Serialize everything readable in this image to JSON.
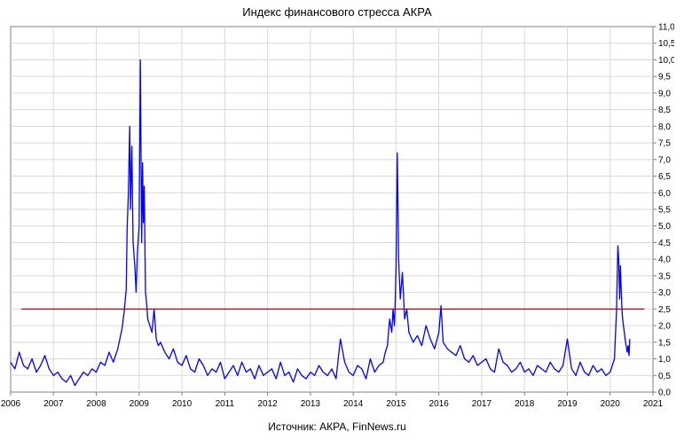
{
  "chart_data": {
    "type": "line",
    "title": "Индекс финансового стресса АКРА",
    "source": "Источник: АКРА, FinNews.ru",
    "xlabel": "",
    "ylabel": "",
    "x_ticks": [
      "2006",
      "2007",
      "2008",
      "2009",
      "2010",
      "2011",
      "2012",
      "2013",
      "2014",
      "2015",
      "2016",
      "2017",
      "2018",
      "2019",
      "2020",
      "2021"
    ],
    "y_ticks": [
      "0,0",
      "0,5",
      "1,0",
      "1,5",
      "2,0",
      "2,5",
      "3,0",
      "3,5",
      "4,0",
      "4,5",
      "5,0",
      "5,5",
      "6,0",
      "6,5",
      "7,0",
      "7,5",
      "8,0",
      "8,5",
      "9,0",
      "9,5",
      "10,0",
      "10,5",
      "11,0"
    ],
    "xlim": [
      2006.0,
      2021.0
    ],
    "ylim": [
      0,
      11
    ],
    "grid": true,
    "series": [
      {
        "color": "#0000ff",
        "x": [
          2006.0,
          2006.1,
          2006.2,
          2006.3,
          2006.4,
          2006.5,
          2006.6,
          2006.7,
          2006.8,
          2006.9,
          2007.0,
          2007.1,
          2007.2,
          2007.3,
          2007.4,
          2007.5,
          2007.6,
          2007.7,
          2007.8,
          2007.9,
          2008.0,
          2008.1,
          2008.2,
          2008.3,
          2008.4,
          2008.5,
          2008.55,
          2008.6,
          2008.65,
          2008.7,
          2008.72,
          2008.75,
          2008.78,
          2008.8,
          2008.83,
          2008.86,
          2008.9,
          2008.93,
          2008.96,
          2009.0,
          2009.03,
          2009.06,
          2009.08,
          2009.1,
          2009.12,
          2009.15,
          2009.18,
          2009.2,
          2009.25,
          2009.3,
          2009.35,
          2009.4,
          2009.45,
          2009.5,
          2009.6,
          2009.7,
          2009.8,
          2009.9,
          2010.0,
          2010.1,
          2010.2,
          2010.3,
          2010.4,
          2010.5,
          2010.6,
          2010.7,
          2010.8,
          2010.9,
          2011.0,
          2011.1,
          2011.2,
          2011.3,
          2011.4,
          2011.5,
          2011.6,
          2011.7,
          2011.8,
          2011.9,
          2012.0,
          2012.1,
          2012.2,
          2012.3,
          2012.4,
          2012.5,
          2012.6,
          2012.7,
          2012.8,
          2012.9,
          2013.0,
          2013.1,
          2013.2,
          2013.3,
          2013.4,
          2013.5,
          2013.6,
          2013.7,
          2013.8,
          2013.9,
          2014.0,
          2014.1,
          2014.2,
          2014.3,
          2014.4,
          2014.5,
          2014.6,
          2014.7,
          2014.75,
          2014.8,
          2014.85,
          2014.9,
          2014.93,
          2014.96,
          2014.98,
          2015.0,
          2015.03,
          2015.06,
          2015.1,
          2015.15,
          2015.2,
          2015.25,
          2015.3,
          2015.4,
          2015.5,
          2015.6,
          2015.7,
          2015.8,
          2015.9,
          2016.0,
          2016.05,
          2016.1,
          2016.2,
          2016.3,
          2016.4,
          2016.5,
          2016.6,
          2016.7,
          2016.8,
          2016.9,
          2017.0,
          2017.1,
          2017.2,
          2017.3,
          2017.4,
          2017.5,
          2017.6,
          2017.7,
          2017.8,
          2017.9,
          2018.0,
          2018.1,
          2018.2,
          2018.3,
          2018.4,
          2018.5,
          2018.6,
          2018.7,
          2018.8,
          2018.9,
          2019.0,
          2019.1,
          2019.2,
          2019.3,
          2019.4,
          2019.5,
          2019.6,
          2019.7,
          2019.8,
          2019.9,
          2020.0,
          2020.1,
          2020.15,
          2020.18,
          2020.2,
          2020.22,
          2020.24,
          2020.26,
          2020.28,
          2020.3,
          2020.33,
          2020.36,
          2020.4,
          2020.42,
          2020.44,
          2020.46
        ],
        "values": [
          0.9,
          0.7,
          1.2,
          0.8,
          0.7,
          1.0,
          0.6,
          0.8,
          1.1,
          0.7,
          0.5,
          0.6,
          0.4,
          0.3,
          0.5,
          0.2,
          0.4,
          0.6,
          0.5,
          0.7,
          0.6,
          0.9,
          0.8,
          1.2,
          0.9,
          1.3,
          1.6,
          1.9,
          2.4,
          3.1,
          4.9,
          6.0,
          8.0,
          5.5,
          7.4,
          4.5,
          3.8,
          3.0,
          4.2,
          5.0,
          10.0,
          4.5,
          6.9,
          5.1,
          6.2,
          3.0,
          2.6,
          2.2,
          2.0,
          1.8,
          2.5,
          1.6,
          1.4,
          1.5,
          1.2,
          1.0,
          1.3,
          0.9,
          0.8,
          1.1,
          0.7,
          0.6,
          1.0,
          0.8,
          0.5,
          0.7,
          0.6,
          0.9,
          0.4,
          0.6,
          0.8,
          0.5,
          0.9,
          0.6,
          0.7,
          0.4,
          0.8,
          0.5,
          0.6,
          0.7,
          0.4,
          0.9,
          0.5,
          0.6,
          0.3,
          0.7,
          0.5,
          0.4,
          0.6,
          0.5,
          0.8,
          0.6,
          0.5,
          0.7,
          0.4,
          1.6,
          0.9,
          0.6,
          0.5,
          0.8,
          0.7,
          0.4,
          1.0,
          0.6,
          0.8,
          0.9,
          1.2,
          1.4,
          2.2,
          1.8,
          2.5,
          2.0,
          2.6,
          3.8,
          7.2,
          4.0,
          2.8,
          3.6,
          2.2,
          2.5,
          1.8,
          1.5,
          1.7,
          1.4,
          2.0,
          1.6,
          1.3,
          1.8,
          2.6,
          1.5,
          1.3,
          1.2,
          1.1,
          1.4,
          1.0,
          0.9,
          1.1,
          0.8,
          0.9,
          1.0,
          0.7,
          0.6,
          1.3,
          0.9,
          0.8,
          0.6,
          0.7,
          0.9,
          0.6,
          0.7,
          0.5,
          0.8,
          0.7,
          0.6,
          0.9,
          0.7,
          0.6,
          0.8,
          1.6,
          0.7,
          0.5,
          0.9,
          0.6,
          0.5,
          0.8,
          0.6,
          0.7,
          0.5,
          0.6,
          1.0,
          2.5,
          4.4,
          4.0,
          2.8,
          3.8,
          3.0,
          2.4,
          2.1,
          1.8,
          1.5,
          1.2,
          1.4,
          1.1,
          1.6
        ]
      },
      {
        "name": "threshold",
        "color": "#c00000",
        "x": [
          2006.25,
          2020.8
        ],
        "values": [
          2.5,
          2.5
        ]
      }
    ]
  }
}
